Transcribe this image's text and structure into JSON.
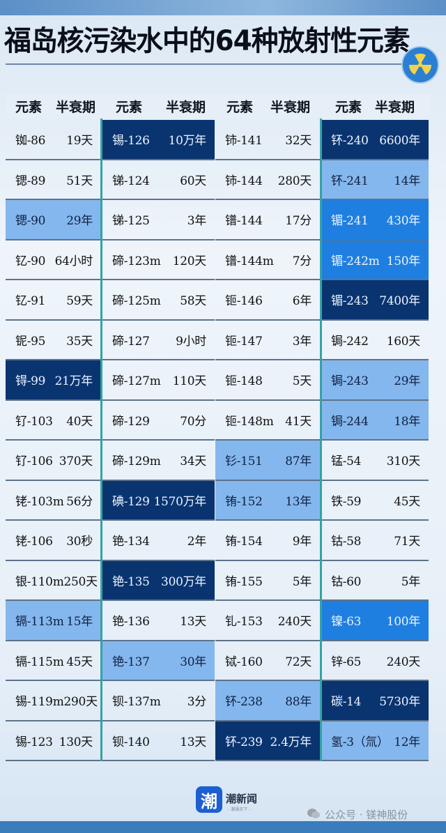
{
  "title": "福岛核污染水中的64种放射性元素",
  "header": {
    "element": "元素",
    "half_life": "半衰期"
  },
  "colors": {
    "dark": "#093470",
    "medium": "#1f7fe0",
    "light": "#84b7ee",
    "divider": "#33a3a3"
  },
  "columns": [
    [
      [
        "铷-86",
        "19天",
        ""
      ],
      [
        "锶-89",
        "51天",
        ""
      ],
      [
        "锶-90",
        "29年",
        "l"
      ],
      [
        "钇-90",
        "64小时",
        ""
      ],
      [
        "钇-91",
        "59天",
        ""
      ],
      [
        "铌-95",
        "35天",
        ""
      ],
      [
        "锝-99",
        "21万年",
        "d"
      ],
      [
        "钌-103",
        "40天",
        ""
      ],
      [
        "钌-106",
        "370天",
        ""
      ],
      [
        "铑-103m",
        "56分",
        ""
      ],
      [
        "铑-106",
        "30秒",
        ""
      ],
      [
        "银-110m",
        "250天",
        ""
      ],
      [
        "镉-113m",
        "15年",
        "l"
      ],
      [
        "镉-115m",
        "45天",
        ""
      ],
      [
        "锡-119m",
        "290天",
        ""
      ],
      [
        "锡-123",
        "130天",
        ""
      ]
    ],
    [
      [
        "锡-126",
        "10万年",
        "d"
      ],
      [
        "锑-124",
        "60天",
        ""
      ],
      [
        "锑-125",
        "3年",
        ""
      ],
      [
        "碲-123m",
        "120天",
        ""
      ],
      [
        "碲-125m",
        "58天",
        ""
      ],
      [
        "碲-127",
        "9小时",
        ""
      ],
      [
        "碲-127m",
        "110天",
        ""
      ],
      [
        "碲-129",
        "70分",
        ""
      ],
      [
        "碲-129m",
        "34天",
        ""
      ],
      [
        "碘-129",
        "1570万年",
        "d"
      ],
      [
        "铯-134",
        "2年",
        ""
      ],
      [
        "铯-135",
        "300万年",
        "d"
      ],
      [
        "铯-136",
        "13天",
        ""
      ],
      [
        "铯-137",
        "30年",
        "l"
      ],
      [
        "钡-137m",
        "3分",
        ""
      ],
      [
        "钡-140",
        "13天",
        ""
      ]
    ],
    [
      [
        "铈-141",
        "32天",
        ""
      ],
      [
        "铈-144",
        "280天",
        ""
      ],
      [
        "镨-144",
        "17分",
        ""
      ],
      [
        "镨-144m",
        "7分",
        ""
      ],
      [
        "钷-146",
        "6年",
        ""
      ],
      [
        "钷-147",
        "3年",
        ""
      ],
      [
        "钷-148",
        "5天",
        ""
      ],
      [
        "钷-148m",
        "41天",
        ""
      ],
      [
        "钐-151",
        "87年",
        "l"
      ],
      [
        "铕-152",
        "13年",
        "l"
      ],
      [
        "铕-154",
        "9年",
        ""
      ],
      [
        "铕-155",
        "5年",
        ""
      ],
      [
        "钆-153",
        "240天",
        ""
      ],
      [
        "铽-160",
        "72天",
        ""
      ],
      [
        "钚-238",
        "88年",
        "l"
      ],
      [
        "钚-239",
        "2.4万年",
        "d"
      ]
    ],
    [
      [
        "钚-240",
        "6600年",
        "d"
      ],
      [
        "钚-241",
        "14年",
        "l"
      ],
      [
        "镅-241",
        "430年",
        "m"
      ],
      [
        "镅-242m",
        "150年",
        "m"
      ],
      [
        "镅-243",
        "7400年",
        "d"
      ],
      [
        "锔-242",
        "160天",
        ""
      ],
      [
        "锔-243",
        "29年",
        "l"
      ],
      [
        "锔-244",
        "18年",
        "l"
      ],
      [
        "锰-54",
        "310天",
        ""
      ],
      [
        "铁-59",
        "45天",
        ""
      ],
      [
        "钴-58",
        "71天",
        ""
      ],
      [
        "钴-60",
        "5年",
        ""
      ],
      [
        "镍-63",
        "100年",
        "m"
      ],
      [
        "锌-65",
        "240天",
        ""
      ],
      [
        "碳-14",
        "5730年",
        "d"
      ],
      [
        "氢-3（氚）",
        "12年",
        "l"
      ]
    ]
  ],
  "footer": {
    "brand": "潮新闻",
    "brand_logo_char": "潮",
    "brand_tagline": "- 潮涌天下 -",
    "watermark": "公众号 · 镁神股份"
  }
}
